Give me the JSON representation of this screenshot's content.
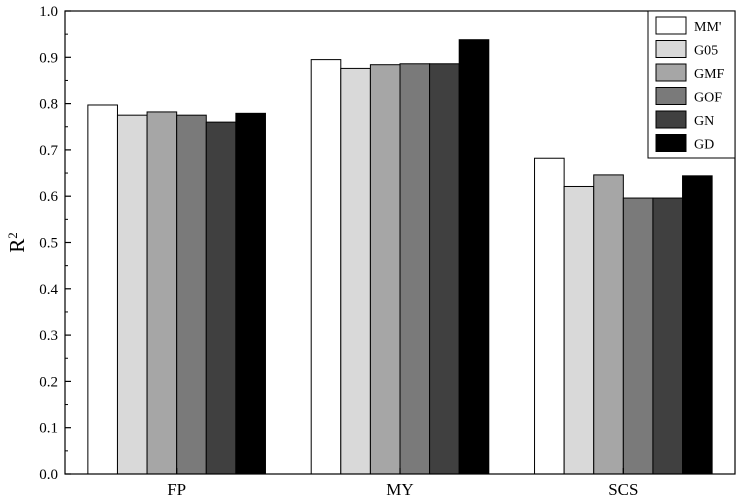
{
  "chart_data": {
    "type": "bar",
    "categories": [
      "FP",
      "MY",
      "SCS"
    ],
    "series": [
      {
        "name": "MM'",
        "color": "#ffffff",
        "values": [
          0.797,
          0.895,
          0.682
        ]
      },
      {
        "name": "G05",
        "color": "#d9d9d9",
        "values": [
          0.775,
          0.876,
          0.621
        ]
      },
      {
        "name": "GMF",
        "color": "#a6a6a6",
        "values": [
          0.782,
          0.884,
          0.646
        ]
      },
      {
        "name": "GOF",
        "color": "#7a7a7a",
        "values": [
          0.775,
          0.886,
          0.596
        ]
      },
      {
        "name": "GN",
        "color": "#404040",
        "values": [
          0.76,
          0.886,
          0.596
        ]
      },
      {
        "name": "GD",
        "color": "#000000",
        "values": [
          0.779,
          0.938,
          0.644
        ]
      }
    ],
    "ylabel_base": "R",
    "ylabel_sup": "2",
    "xlabel": "",
    "ylim": [
      0.0,
      1.0
    ],
    "yticks": [
      "0.0",
      "0.1",
      "0.2",
      "0.3",
      "0.4",
      "0.5",
      "0.6",
      "0.7",
      "0.8",
      "0.9",
      "1.0"
    ],
    "legend_position": "top-right",
    "grid": false
  }
}
